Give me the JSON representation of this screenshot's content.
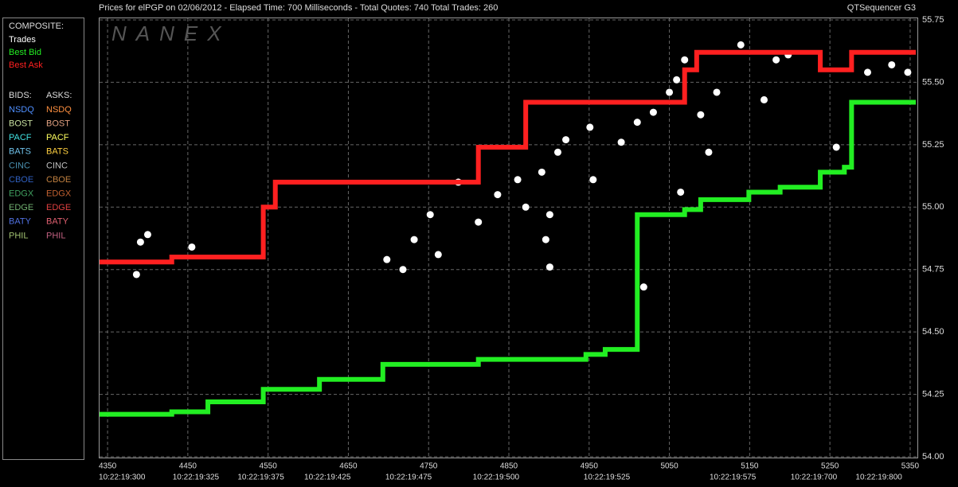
{
  "header": {
    "left": "Prices for  elPGP  on  02/06/2012  -  Elapsed Time: 700 Milliseconds  -  Total Quotes: 740  Total Trades: 260",
    "right": "QTSequencer G3"
  },
  "legend_panel": {
    "composite_title": "COMPOSITE:",
    "bids_title": "BIDS:",
    "asks_title": "ASKS:",
    "bids": [
      {
        "name": "NSDQ",
        "color": "#4f8fff"
      },
      {
        "name": "BOST",
        "color": "#c8e0a0"
      },
      {
        "name": "PACF",
        "color": "#40e0e0"
      },
      {
        "name": "BATS",
        "color": "#6fc0e8"
      },
      {
        "name": "CINC",
        "color": "#4a90b0"
      },
      {
        "name": "CBOE",
        "color": "#3060c0"
      },
      {
        "name": "EDGX",
        "color": "#40a060"
      },
      {
        "name": "EDGE",
        "color": "#70b070"
      },
      {
        "name": "BATY",
        "color": "#5070e0"
      },
      {
        "name": "PHIL",
        "color": "#a0c070"
      }
    ],
    "asks": [
      {
        "name": "NSDQ",
        "color": "#ff9040"
      },
      {
        "name": "BOST",
        "color": "#e0a080"
      },
      {
        "name": "PACF",
        "color": "#ffff60"
      },
      {
        "name": "BATS",
        "color": "#ffd040"
      },
      {
        "name": "CINC",
        "color": "#c0c0c0"
      },
      {
        "name": "CBOE",
        "color": "#c08040"
      },
      {
        "name": "EDGX",
        "color": "#c06030"
      },
      {
        "name": "EDGE",
        "color": "#e04040"
      },
      {
        "name": "BATY",
        "color": "#e06070"
      },
      {
        "name": "PHIL",
        "color": "#c06080"
      }
    ]
  },
  "chart_data": {
    "type": "line",
    "watermark": "NANEX",
    "xlim": [
      4340,
      5359
    ],
    "xticks": [
      4350,
      4450,
      4550,
      4650,
      4750,
      4850,
      4950,
      5050,
      5150,
      5250,
      5350
    ],
    "time_ticks": [
      {
        "value": 4368,
        "label": "10:22:19:300"
      },
      {
        "value": 4460,
        "label": "10:22:19:325"
      },
      {
        "value": 4541,
        "label": "10:22:19:375"
      },
      {
        "value": 4624,
        "label": "10:22:19:425"
      },
      {
        "value": 4725,
        "label": "10:22:19:475"
      },
      {
        "value": 4834,
        "label": "10:22:19:500"
      },
      {
        "value": 4972,
        "label": "10:22:19:525"
      },
      {
        "value": 5129,
        "label": "10:22:19:575"
      },
      {
        "value": 5230,
        "label": "10:22:19:700"
      },
      {
        "value": 5311,
        "label": "10:22:19:800"
      }
    ],
    "ylim": [
      54.0,
      55.75
    ],
    "yticks": [
      {
        "value": 54,
        "label": "54.00"
      },
      54.25,
      {
        "value": 54.5,
        "label": "54.50"
      },
      54.75,
      {
        "value": 55,
        "label": "55.00"
      },
      55.25,
      {
        "value": 55.5,
        "label": "55.50"
      },
      55.75
    ],
    "grid": true,
    "series": [
      {
        "name": "Trades",
        "color": "#ffffff",
        "style": "points",
        "x": [
          4386,
          4391,
          4400,
          4455,
          4698,
          4718,
          4732,
          4752,
          4762,
          4787,
          4812,
          4836,
          4861,
          4871,
          4891,
          4911,
          4921,
          4901,
          4896,
          4901,
          4951,
          4955,
          4990,
          5010,
          5030,
          5050,
          5059,
          5069,
          5018,
          5064,
          5089,
          5099,
          5109,
          5139,
          5168,
          5183,
          5198,
          5258,
          5297,
          5327,
          5347
        ],
        "values": [
          54.73,
          54.86,
          54.89,
          54.84,
          54.79,
          54.75,
          54.87,
          54.97,
          54.81,
          55.1,
          54.94,
          55.05,
          55.11,
          55.0,
          55.14,
          55.22,
          55.27,
          54.97,
          54.87,
          54.76,
          55.32,
          55.11,
          55.26,
          55.34,
          55.38,
          55.46,
          55.51,
          55.59,
          54.68,
          55.06,
          55.37,
          55.22,
          55.46,
          55.65,
          55.43,
          55.59,
          55.61,
          55.24,
          55.54,
          55.57,
          55.54
        ]
      },
      {
        "name": "Best Bid",
        "color": "#22ee22",
        "style": "step",
        "x": [
          4340,
          4430,
          4475,
          4544,
          4614,
          4693,
          4812,
          4946,
          4970,
          5010,
          5069,
          5089,
          5149,
          5188,
          5238,
          5268,
          5277,
          5357
        ],
        "values": [
          54.17,
          54.18,
          54.22,
          54.27,
          54.31,
          54.37,
          54.39,
          54.41,
          54.43,
          54.97,
          54.99,
          55.03,
          55.06,
          55.08,
          55.14,
          55.16,
          55.42,
          55.42
        ]
      },
      {
        "name": "Best Ask",
        "color": "#ff2020",
        "style": "step",
        "x": [
          4340,
          4430,
          4544,
          4559,
          4812,
          4871,
          5069,
          5084,
          5238,
          5277,
          5357
        ],
        "values": [
          54.78,
          54.8,
          55.0,
          55.1,
          55.24,
          55.42,
          55.55,
          55.62,
          55.55,
          55.62,
          55.62
        ]
      }
    ]
  }
}
